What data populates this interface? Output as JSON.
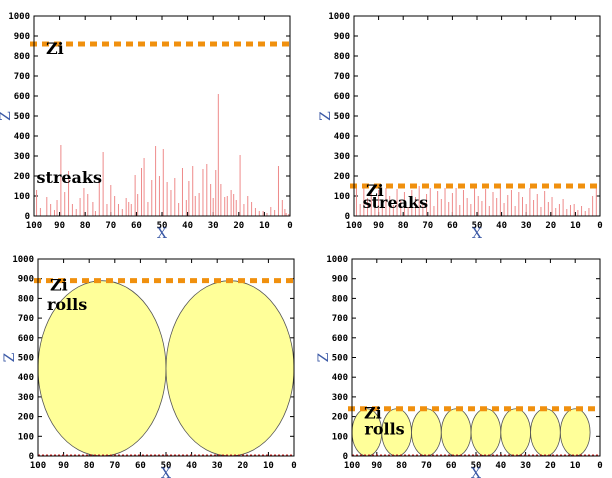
{
  "colors": {
    "streak": "#ee8a8a",
    "zi_line": "#f0900e",
    "roll_fill": "#ffff99",
    "roll_stroke": "#555555",
    "axis_label": "#3c5aa6",
    "baseline": "#cc2222"
  },
  "chart_data": [
    {
      "type": "bar",
      "xlabel": "X",
      "ylabel": "Z",
      "xlim": [
        100,
        0
      ],
      "ylim": [
        0,
        1000
      ],
      "xticks": [
        "100",
        "90",
        "80",
        "70",
        "60",
        "50",
        "40",
        "30",
        "20",
        "10",
        "0"
      ],
      "yticks": [
        "0",
        "100",
        "200",
        "300",
        "400",
        "500",
        "600",
        "700",
        "800",
        "900",
        "1000"
      ],
      "zi": 860,
      "zi_label": "Zi",
      "annotation": "streaks",
      "annotation_x": 99,
      "annotation_y": 165,
      "x": [
        99,
        97.5,
        95,
        93.5,
        92,
        91,
        89.5,
        88,
        86.5,
        85,
        83.5,
        82,
        80.5,
        79,
        77,
        76,
        74.5,
        73,
        71.5,
        70,
        68.5,
        67,
        65.5,
        64,
        63,
        62,
        60.5,
        59.5,
        58,
        57,
        55.5,
        54,
        52.5,
        51,
        49.5,
        48,
        46.5,
        45,
        43.5,
        42,
        40.5,
        39.5,
        38,
        37,
        35.5,
        34,
        32.5,
        31,
        30,
        29,
        28,
        27,
        25.5,
        24.5,
        23,
        22,
        21,
        19.5,
        18,
        16.5,
        15,
        13.5,
        12,
        10.5,
        9,
        7.5,
        6,
        4.5,
        3,
        2,
        1.5,
        0.5
      ],
      "values": [
        130,
        40,
        95,
        60,
        30,
        80,
        355,
        120,
        225,
        60,
        35,
        90,
        140,
        110,
        70,
        25,
        190,
        320,
        60,
        155,
        100,
        60,
        35,
        90,
        70,
        60,
        205,
        110,
        240,
        290,
        70,
        180,
        350,
        200,
        335,
        170,
        130,
        190,
        65,
        240,
        80,
        175,
        250,
        100,
        115,
        235,
        260,
        160,
        90,
        230,
        610,
        160,
        95,
        100,
        130,
        110,
        80,
        305,
        60,
        100,
        70,
        40,
        25,
        25,
        15,
        45,
        30,
        250,
        80,
        35,
        15,
        10
      ]
    },
    {
      "type": "bar",
      "xlabel": "X",
      "ylabel": "Z",
      "xlim": [
        100,
        0
      ],
      "ylim": [
        0,
        1000
      ],
      "xticks": [
        "100",
        "90",
        "80",
        "70",
        "60",
        "50",
        "40",
        "30",
        "20",
        "10",
        "0"
      ],
      "yticks": [
        "0",
        "100",
        "200",
        "300",
        "400",
        "500",
        "600",
        "700",
        "800",
        "900",
        "1000"
      ],
      "zi": 150,
      "zi_label": "Zi",
      "annotation": "streaks",
      "annotation_x": 96.5,
      "annotation_y": 40,
      "x": [
        99,
        97.5,
        96,
        94.5,
        93,
        91.5,
        90,
        88.5,
        87,
        85.5,
        84,
        82.5,
        81,
        79.5,
        78,
        76.5,
        75,
        73.5,
        72,
        70.5,
        69,
        67.5,
        66,
        64.5,
        63,
        61.5,
        60,
        58.5,
        57,
        55.5,
        54,
        52.5,
        51,
        49.5,
        48,
        46.5,
        45,
        43.5,
        42,
        40.5,
        39,
        37.5,
        36,
        34.5,
        33,
        31.5,
        30,
        28.5,
        27,
        25.5,
        24,
        22.5,
        21,
        19.5,
        18,
        16.5,
        15,
        13.5,
        12,
        10.5,
        9,
        7.5,
        6,
        4.5,
        3,
        1.5
      ],
      "values": [
        140,
        60,
        150,
        90,
        120,
        40,
        130,
        70,
        140,
        100,
        55,
        135,
        80,
        120,
        45,
        130,
        95,
        150,
        60,
        110,
        140,
        50,
        125,
        85,
        140,
        70,
        115,
        140,
        55,
        130,
        90,
        60,
        140,
        100,
        75,
        135,
        50,
        120,
        90,
        145,
        65,
        105,
        130,
        50,
        120,
        95,
        60,
        140,
        80,
        110,
        45,
        125,
        70,
        95,
        40,
        60,
        85,
        35,
        55,
        60,
        30,
        50,
        25,
        40,
        100,
        140
      ]
    },
    {
      "type": "bar",
      "xlabel": "X",
      "ylabel": "Z",
      "xlim": [
        100,
        0
      ],
      "ylim": [
        0,
        1000
      ],
      "xticks": [
        "100",
        "90",
        "80",
        "70",
        "60",
        "50",
        "40",
        "30",
        "20",
        "10",
        "0"
      ],
      "yticks": [
        "0",
        "100",
        "200",
        "300",
        "400",
        "500",
        "600",
        "700",
        "800",
        "900",
        "1000"
      ],
      "zi": 890,
      "zi_label": "Zi",
      "annotation": "rolls",
      "annotation_x": 96.5,
      "annotation_y": 740,
      "rolls": [
        {
          "cx": 75,
          "cy": 445,
          "rx": 25,
          "ry": 445
        },
        {
          "cx": 25,
          "cy": 445,
          "rx": 25,
          "ry": 445
        }
      ]
    },
    {
      "type": "bar",
      "xlabel": "X",
      "ylabel": "Z",
      "xlim": [
        100,
        0
      ],
      "ylim": [
        0,
        1000
      ],
      "xticks": [
        "100",
        "90",
        "80",
        "70",
        "60",
        "50",
        "40",
        "30",
        "20",
        "10",
        "0"
      ],
      "yticks": [
        "0",
        "100",
        "200",
        "300",
        "400",
        "500",
        "600",
        "700",
        "800",
        "900",
        "1000"
      ],
      "zi": 240,
      "zi_label": "Zi",
      "annotation": "rolls",
      "annotation_x": 95,
      "annotation_y": 110,
      "rolls": [
        {
          "cx": 94,
          "cy": 120,
          "rx": 6,
          "ry": 120
        },
        {
          "cx": 82,
          "cy": 120,
          "rx": 6,
          "ry": 120
        },
        {
          "cx": 70,
          "cy": 120,
          "rx": 6,
          "ry": 120
        },
        {
          "cx": 58,
          "cy": 120,
          "rx": 6,
          "ry": 120
        },
        {
          "cx": 46,
          "cy": 120,
          "rx": 6,
          "ry": 120
        },
        {
          "cx": 34,
          "cy": 120,
          "rx": 6,
          "ry": 120
        },
        {
          "cx": 22,
          "cy": 120,
          "rx": 6,
          "ry": 120
        },
        {
          "cx": 10,
          "cy": 120,
          "rx": 6,
          "ry": 120
        }
      ]
    }
  ]
}
